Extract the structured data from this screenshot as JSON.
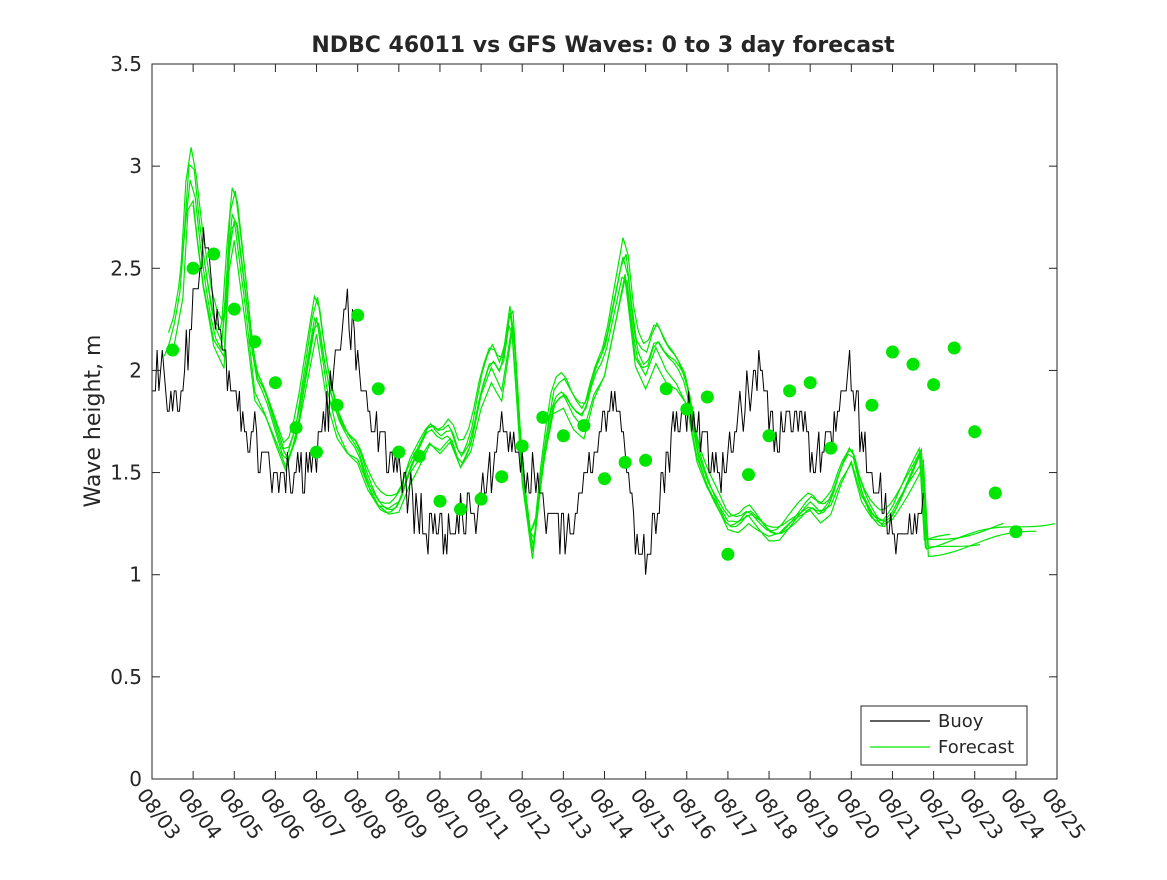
{
  "chart_data": {
    "type": "line",
    "title": "NDBC 46011 vs GFS Waves: 0 to 3 day forecast",
    "xlabel": "",
    "ylabel": "Wave height, m",
    "ylim": [
      0,
      3.5
    ],
    "xlim": [
      0,
      22
    ],
    "yticks": [
      0,
      0.5,
      1,
      1.5,
      2,
      2.5,
      3,
      3.5
    ],
    "ytick_labels": [
      "0",
      "0.5",
      "1",
      "1.5",
      "2",
      "2.5",
      "3",
      "3.5"
    ],
    "xtick_labels": [
      "08/03",
      "08/04",
      "08/05",
      "08/06",
      "08/07",
      "08/08",
      "08/09",
      "08/10",
      "08/11",
      "08/12",
      "08/13",
      "08/14",
      "08/15",
      "08/16",
      "08/17",
      "08/18",
      "08/19",
      "08/20",
      "08/21",
      "08/22",
      "08/23",
      "08/24",
      "08/25"
    ],
    "grid": false,
    "legend": {
      "position": "bottom-right",
      "entries": [
        "Buoy",
        "Forecast"
      ]
    },
    "colors": {
      "buoy": "#000000",
      "forecast": "#00e600",
      "axis": "#262626"
    },
    "buoy_anchors": [
      [
        0.0,
        1.95
      ],
      [
        0.25,
        2.05
      ],
      [
        0.5,
        1.8
      ],
      [
        0.75,
        1.95
      ],
      [
        1.0,
        2.3
      ],
      [
        1.25,
        2.6
      ],
      [
        1.5,
        2.35
      ],
      [
        1.75,
        2.1
      ],
      [
        2.0,
        1.9
      ],
      [
        2.25,
        1.75
      ],
      [
        2.5,
        1.65
      ],
      [
        2.75,
        1.6
      ],
      [
        3.0,
        1.45
      ],
      [
        3.25,
        1.5
      ],
      [
        3.5,
        1.45
      ],
      [
        3.75,
        1.55
      ],
      [
        4.0,
        1.6
      ],
      [
        4.25,
        1.8
      ],
      [
        4.5,
        2.1
      ],
      [
        4.75,
        2.3
      ],
      [
        5.0,
        2.1
      ],
      [
        5.25,
        1.8
      ],
      [
        5.5,
        1.7
      ],
      [
        5.75,
        1.6
      ],
      [
        6.0,
        1.5
      ],
      [
        6.25,
        1.4
      ],
      [
        6.5,
        1.3
      ],
      [
        6.75,
        1.2
      ],
      [
        7.0,
        1.25
      ],
      [
        7.25,
        1.2
      ],
      [
        7.5,
        1.25
      ],
      [
        7.75,
        1.3
      ],
      [
        8.0,
        1.4
      ],
      [
        8.25,
        1.55
      ],
      [
        8.5,
        1.7
      ],
      [
        8.75,
        1.65
      ],
      [
        9.0,
        1.55
      ],
      [
        9.25,
        1.5
      ],
      [
        9.5,
        1.35
      ],
      [
        9.75,
        1.25
      ],
      [
        10.0,
        1.2
      ],
      [
        10.25,
        1.25
      ],
      [
        10.5,
        1.45
      ],
      [
        10.75,
        1.6
      ],
      [
        11.0,
        1.8
      ],
      [
        11.25,
        1.85
      ],
      [
        11.5,
        1.6
      ],
      [
        11.75,
        1.2
      ],
      [
        12.0,
        1.05
      ],
      [
        12.25,
        1.3
      ],
      [
        12.5,
        1.5
      ],
      [
        12.75,
        1.75
      ],
      [
        13.0,
        1.85
      ],
      [
        13.25,
        1.7
      ],
      [
        13.5,
        1.6
      ],
      [
        13.75,
        1.5
      ],
      [
        14.0,
        1.55
      ],
      [
        14.25,
        1.8
      ],
      [
        14.5,
        1.9
      ],
      [
        14.75,
        2.0
      ],
      [
        15.0,
        1.75
      ],
      [
        15.25,
        1.7
      ],
      [
        15.5,
        1.8
      ],
      [
        15.75,
        1.75
      ],
      [
        16.0,
        1.6
      ],
      [
        16.25,
        1.6
      ],
      [
        16.5,
        1.65
      ],
      [
        16.75,
        1.85
      ],
      [
        17.0,
        2.0
      ],
      [
        17.25,
        1.65
      ],
      [
        17.5,
        1.5
      ],
      [
        17.75,
        1.35
      ],
      [
        18.0,
        1.25
      ],
      [
        18.25,
        1.2
      ],
      [
        18.5,
        1.25
      ],
      [
        18.75,
        1.3
      ]
    ],
    "buoy_noise_seed": 46011,
    "forecast_center": [
      [
        0.3,
        2.05
      ],
      [
        0.5,
        2.15
      ],
      [
        0.75,
        2.45
      ],
      [
        0.85,
        2.9
      ],
      [
        1.0,
        2.95
      ],
      [
        1.1,
        2.75
      ],
      [
        1.25,
        2.5
      ],
      [
        1.5,
        2.2
      ],
      [
        1.75,
        2.1
      ],
      [
        1.85,
        2.6
      ],
      [
        2.0,
        2.8
      ],
      [
        2.25,
        2.4
      ],
      [
        2.5,
        1.95
      ],
      [
        2.75,
        1.85
      ],
      [
        3.0,
        1.7
      ],
      [
        3.25,
        1.55
      ],
      [
        3.5,
        1.7
      ],
      [
        3.75,
        2.0
      ],
      [
        4.0,
        2.3
      ],
      [
        4.25,
        1.95
      ],
      [
        4.5,
        1.75
      ],
      [
        4.75,
        1.65
      ],
      [
        5.0,
        1.6
      ],
      [
        5.25,
        1.45
      ],
      [
        5.5,
        1.35
      ],
      [
        5.75,
        1.32
      ],
      [
        6.0,
        1.35
      ],
      [
        6.25,
        1.5
      ],
      [
        6.5,
        1.6
      ],
      [
        6.75,
        1.7
      ],
      [
        7.0,
        1.65
      ],
      [
        7.25,
        1.7
      ],
      [
        7.5,
        1.55
      ],
      [
        7.75,
        1.65
      ],
      [
        8.0,
        1.9
      ],
      [
        8.25,
        2.05
      ],
      [
        8.5,
        1.95
      ],
      [
        8.75,
        2.3
      ],
      [
        9.0,
        1.5
      ],
      [
        9.25,
        1.1
      ],
      [
        9.5,
        1.55
      ],
      [
        9.75,
        1.85
      ],
      [
        10.0,
        1.9
      ],
      [
        10.25,
        1.8
      ],
      [
        10.5,
        1.75
      ],
      [
        10.75,
        1.95
      ],
      [
        11.0,
        2.05
      ],
      [
        11.25,
        2.3
      ],
      [
        11.5,
        2.55
      ],
      [
        11.75,
        2.1
      ],
      [
        12.0,
        2.0
      ],
      [
        12.25,
        2.15
      ],
      [
        12.5,
        2.05
      ],
      [
        12.75,
        2.0
      ],
      [
        13.0,
        1.9
      ],
      [
        13.25,
        1.6
      ],
      [
        13.5,
        1.45
      ],
      [
        13.75,
        1.35
      ],
      [
        14.0,
        1.25
      ],
      [
        14.25,
        1.25
      ],
      [
        14.5,
        1.3
      ],
      [
        14.75,
        1.25
      ],
      [
        15.0,
        1.2
      ],
      [
        15.25,
        1.2
      ],
      [
        15.5,
        1.25
      ],
      [
        15.75,
        1.3
      ],
      [
        16.0,
        1.35
      ],
      [
        16.25,
        1.3
      ],
      [
        16.5,
        1.35
      ],
      [
        16.75,
        1.5
      ],
      [
        17.0,
        1.6
      ],
      [
        17.25,
        1.4
      ],
      [
        17.5,
        1.3
      ],
      [
        17.75,
        1.25
      ],
      [
        18.0,
        1.3
      ],
      [
        18.25,
        1.4
      ],
      [
        18.5,
        1.5
      ],
      [
        18.75,
        1.6
      ]
    ],
    "forecast_markers": [
      [
        0.5,
        2.1
      ],
      [
        1.0,
        2.5
      ],
      [
        1.5,
        2.57
      ],
      [
        2.0,
        2.3
      ],
      [
        2.5,
        2.14
      ],
      [
        3.0,
        1.94
      ],
      [
        3.5,
        1.72
      ],
      [
        4.0,
        1.6
      ],
      [
        4.5,
        1.83
      ],
      [
        5.0,
        2.27
      ],
      [
        5.5,
        1.91
      ],
      [
        6.0,
        1.6
      ],
      [
        6.5,
        1.58
      ],
      [
        7.0,
        1.36
      ],
      [
        7.5,
        1.32
      ],
      [
        8.0,
        1.37
      ],
      [
        8.5,
        1.48
      ],
      [
        9.0,
        1.63
      ],
      [
        9.5,
        1.77
      ],
      [
        10.0,
        1.68
      ],
      [
        10.5,
        1.73
      ],
      [
        11.0,
        1.47
      ],
      [
        11.5,
        1.55
      ],
      [
        12.0,
        1.56
      ],
      [
        12.5,
        1.91
      ],
      [
        13.0,
        1.81
      ],
      [
        13.5,
        1.87
      ],
      [
        14.0,
        1.1
      ],
      [
        14.5,
        1.49
      ],
      [
        15.0,
        1.68
      ],
      [
        15.5,
        1.9
      ],
      [
        16.0,
        1.94
      ],
      [
        16.5,
        1.62
      ],
      [
        17.5,
        1.83
      ],
      [
        18.0,
        2.09
      ],
      [
        18.5,
        2.03
      ],
      [
        19.0,
        1.93
      ],
      [
        19.5,
        2.11
      ],
      [
        20.0,
        1.7
      ],
      [
        20.5,
        1.4
      ],
      [
        21.0,
        1.21
      ]
    ]
  }
}
